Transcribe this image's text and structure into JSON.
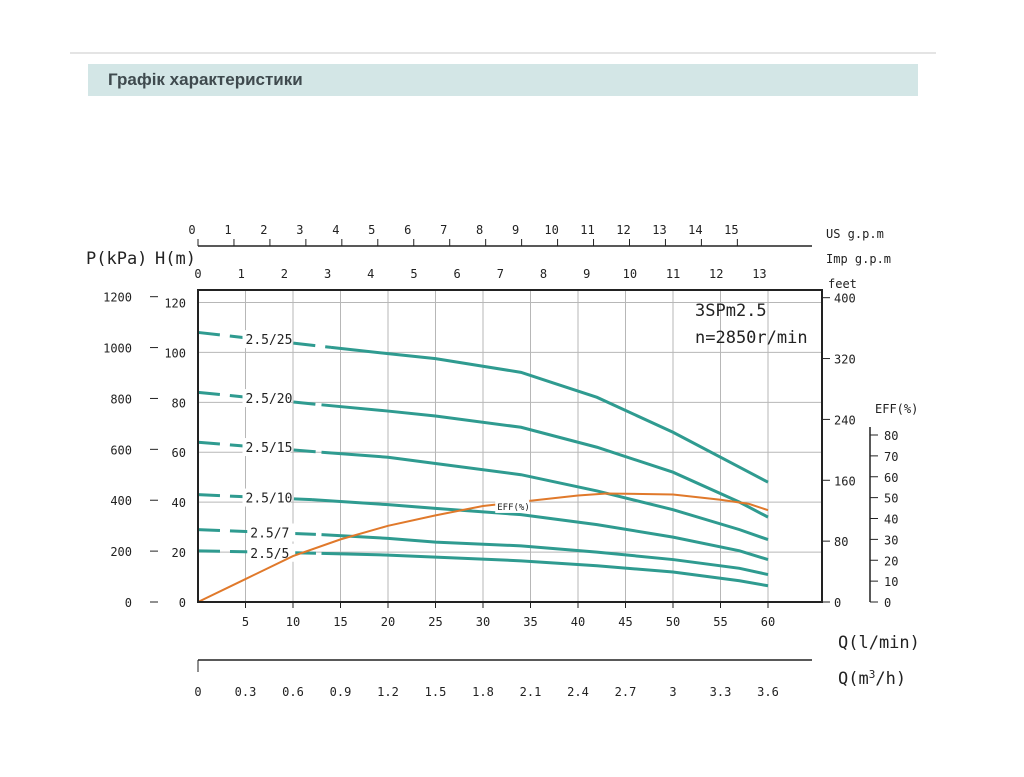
{
  "page": {
    "section_title": "Графік характеристики"
  },
  "colors": {
    "pump_curve": "#2f9b90",
    "efficiency_curve": "#e0792b",
    "grid": "#b7b7b7",
    "axis": "#222222"
  },
  "chart_data": {
    "type": "line",
    "model": "3SPm2.5",
    "speed": "n=2850r/min",
    "x_axis": {
      "label": "Q(l/min)",
      "range": [
        0,
        60
      ],
      "ticks": [
        5,
        10,
        15,
        20,
        25,
        30,
        35,
        40,
        45,
        50,
        55,
        60
      ]
    },
    "m3h_axis": {
      "label": "Q(m³/h)",
      "ticks": [
        "0",
        "0.3",
        "0.6",
        "0.9",
        "1.2",
        "1.5",
        "1.8",
        "2.1",
        "2.4",
        "2.7",
        "3",
        "3.3",
        "3.6"
      ]
    },
    "usgpm_axis": {
      "label": "US g.p.m",
      "ticks": [
        "0",
        "1",
        "2",
        "3",
        "4",
        "5",
        "6",
        "7",
        "8",
        "9",
        "10",
        "11",
        "12",
        "13",
        "14",
        "15"
      ]
    },
    "impgpm_axis": {
      "label": "Imp g.p.m",
      "ticks": [
        "0",
        "1",
        "2",
        "3",
        "4",
        "5",
        "6",
        "7",
        "8",
        "9",
        "10",
        "11",
        "12",
        "13"
      ]
    },
    "y_head": {
      "label": "H(m)",
      "range": [
        0,
        125
      ],
      "ticks": [
        0,
        20,
        40,
        60,
        80,
        100,
        120
      ]
    },
    "y_pressure": {
      "label": "P(kPa)",
      "ticks": [
        0,
        200,
        400,
        600,
        800,
        1000,
        1200
      ]
    },
    "y_feet": {
      "label": "feet",
      "ticks": [
        0,
        80,
        160,
        240,
        320,
        400
      ]
    },
    "y_eff": {
      "label": "EFF(%)",
      "ticks": [
        0,
        10,
        20,
        30,
        40,
        50,
        60,
        70,
        80
      ]
    },
    "series": [
      {
        "name": "2.5/25",
        "points": [
          [
            0,
            108
          ],
          [
            14,
            102
          ],
          [
            20,
            99.5
          ],
          [
            25,
            97.5
          ],
          [
            34,
            92
          ],
          [
            42,
            82
          ],
          [
            50,
            68
          ],
          [
            57,
            54
          ],
          [
            60,
            48
          ]
        ]
      },
      {
        "name": "2.5/20",
        "points": [
          [
            0,
            84
          ],
          [
            13,
            79
          ],
          [
            20,
            76.5
          ],
          [
            25,
            74.5
          ],
          [
            34,
            70
          ],
          [
            42,
            62
          ],
          [
            50,
            52
          ],
          [
            57,
            40
          ],
          [
            60,
            34
          ]
        ]
      },
      {
        "name": "2.5/15",
        "points": [
          [
            0,
            64
          ],
          [
            13,
            60
          ],
          [
            20,
            58
          ],
          [
            25,
            55.5
          ],
          [
            34,
            51
          ],
          [
            42,
            44.5
          ],
          [
            50,
            37
          ],
          [
            57,
            29
          ],
          [
            60,
            25
          ]
        ]
      },
      {
        "name": "2.5/10",
        "points": [
          [
            0,
            43
          ],
          [
            12,
            41
          ],
          [
            20,
            39
          ],
          [
            25,
            37.5
          ],
          [
            34,
            35
          ],
          [
            42,
            31
          ],
          [
            50,
            26
          ],
          [
            57,
            20.5
          ],
          [
            60,
            17
          ]
        ]
      },
      {
        "name": "2.5/7",
        "points": [
          [
            0,
            29
          ],
          [
            13,
            27
          ],
          [
            20,
            25.5
          ],
          [
            25,
            24
          ],
          [
            34,
            22.5
          ],
          [
            42,
            20
          ],
          [
            50,
            17
          ],
          [
            57,
            13.5
          ],
          [
            60,
            11
          ]
        ]
      },
      {
        "name": "2.5/5",
        "points": [
          [
            0,
            20.5
          ],
          [
            13,
            19.5
          ],
          [
            20,
            18.8
          ],
          [
            25,
            18
          ],
          [
            34,
            16.5
          ],
          [
            42,
            14.5
          ],
          [
            50,
            12
          ],
          [
            57,
            8.5
          ],
          [
            60,
            6.5
          ]
        ]
      }
    ],
    "efficiency": {
      "name": "EFF(%)",
      "points": [
        [
          0,
          0
        ],
        [
          5,
          11
        ],
        [
          10,
          22
        ],
        [
          15,
          30
        ],
        [
          20,
          36.5
        ],
        [
          25,
          41.5
        ],
        [
          30,
          46
        ],
        [
          35,
          48.5
        ],
        [
          40,
          51
        ],
        [
          43,
          52
        ],
        [
          50,
          51.5
        ],
        [
          55,
          49
        ],
        [
          58,
          47
        ],
        [
          60,
          44
        ]
      ]
    }
  }
}
